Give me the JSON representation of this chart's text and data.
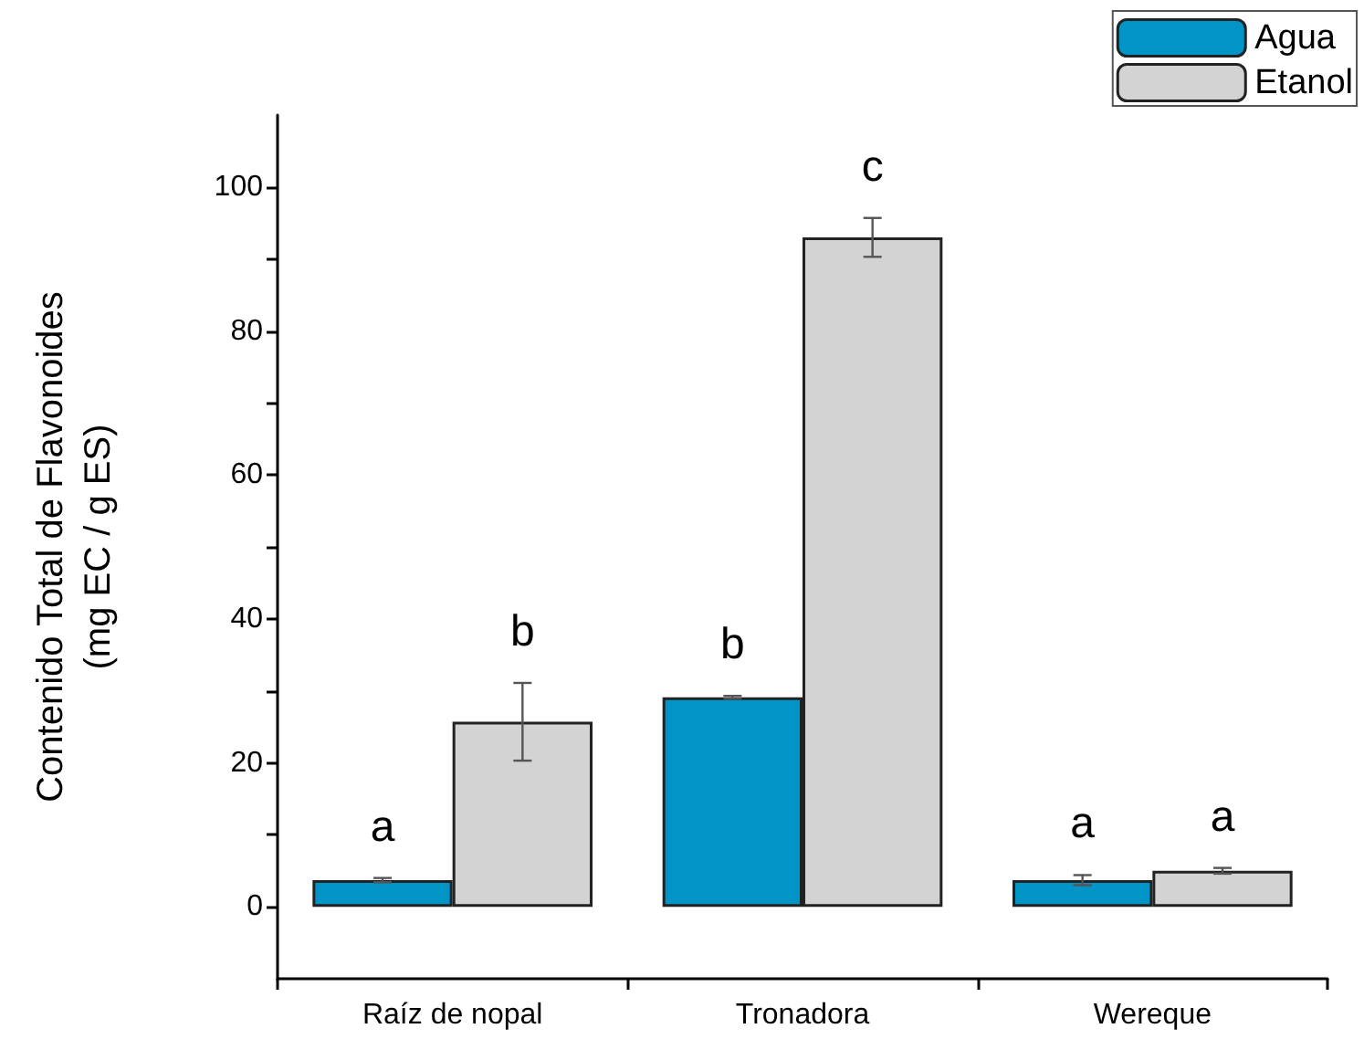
{
  "chart_data": {
    "type": "bar",
    "ylabel": "Contenido Total de Flavonoides\n(mg EC / g ES)",
    "categories": [
      "Raíz de nopal",
      "Tronadora",
      "Wereque"
    ],
    "series": [
      {
        "name": "Agua",
        "color": "#0095c6",
        "values": [
          3.7,
          29.1,
          3.7
        ],
        "errors": [
          0.3,
          0.2,
          0.7
        ],
        "value_labels": [
          "a",
          "b",
          "a"
        ]
      },
      {
        "name": "Etanol",
        "color": "#d3d3d3",
        "values": [
          25.7,
          93.0,
          5.0
        ],
        "errors": [
          5.4,
          2.7,
          0.4
        ],
        "value_labels": [
          "b",
          "c",
          "a"
        ]
      }
    ],
    "ylim": [
      -10,
      110
    ],
    "yticks": [
      0,
      {
        "value": 10,
        "label": null
      },
      20,
      {
        "value": 30,
        "label": null
      },
      40,
      {
        "value": 50,
        "label": null
      },
      60,
      {
        "value": 70,
        "label": null
      },
      80,
      {
        "value": 90,
        "label": null
      },
      100
    ],
    "grid": false,
    "legend": "top right"
  }
}
